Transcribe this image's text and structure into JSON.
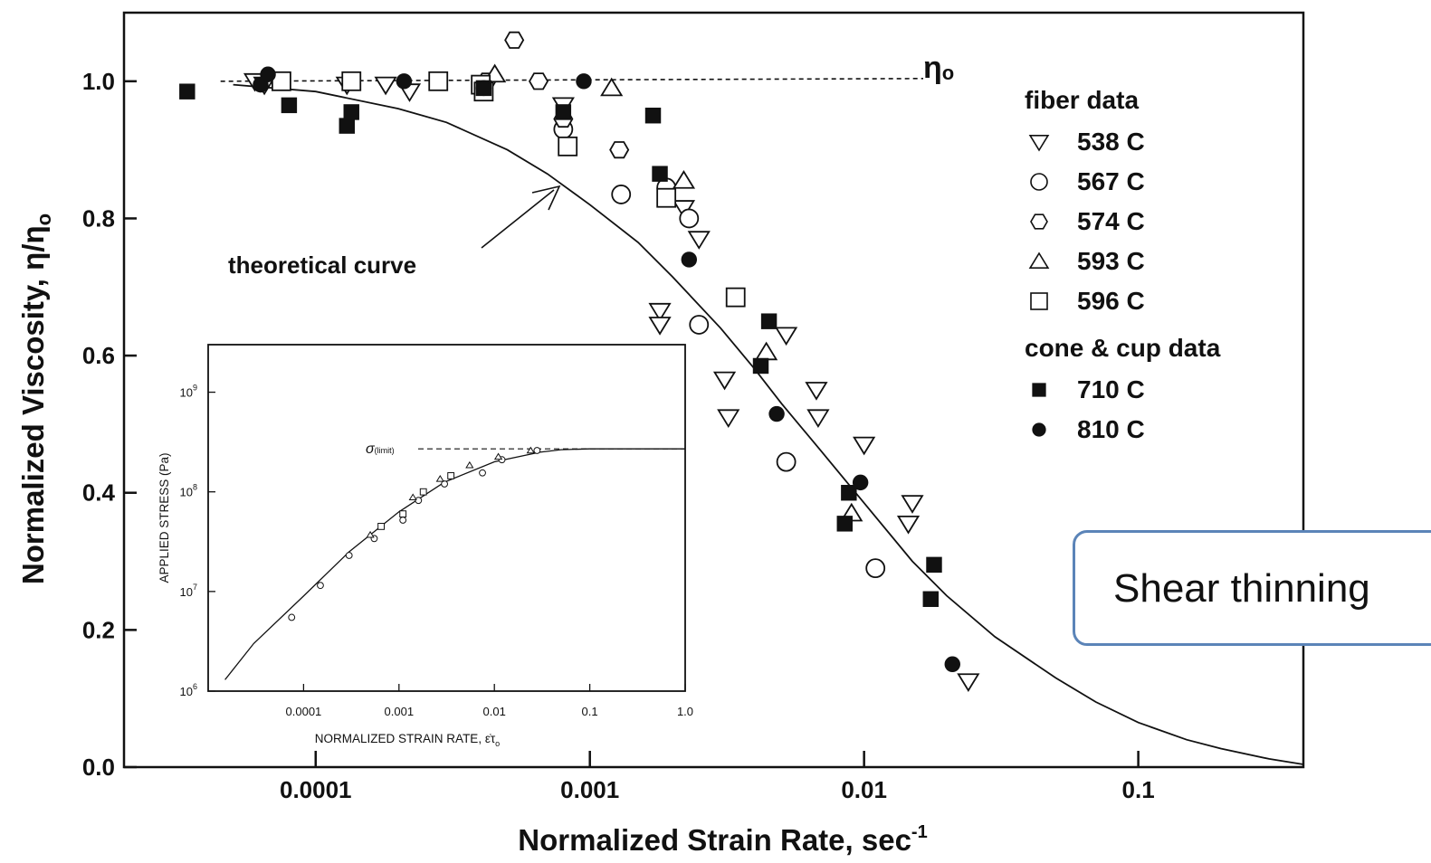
{
  "chart_data": [
    {
      "type": "scatter",
      "title": "",
      "xlabel": "Normalized Strain Rate, sec",
      "xlabel_sup": "-1",
      "ylabel": "Normalized Viscosity, η/η",
      "ylabel_sub": "o",
      "x_scale": "log",
      "xlim": [
        2e-05,
        0.4
      ],
      "ylim": [
        0,
        1.1
      ],
      "x_ticks": [
        0.0001,
        0.001,
        0.01,
        0.1
      ],
      "x_tick_labels": [
        "0.0001",
        "0.001",
        "0.01",
        "0.1"
      ],
      "y_ticks": [
        0.0,
        0.2,
        0.4,
        0.6,
        0.8,
        1.0
      ],
      "y_tick_labels": [
        "0.0",
        "0.2",
        "0.4",
        "0.6",
        "0.8",
        "1.0"
      ],
      "legend_placement": "right",
      "legend_groups": [
        {
          "title": "fiber data",
          "series": [
            0,
            1,
            2,
            3,
            4
          ]
        },
        {
          "title": "cone & cup data",
          "series": [
            5,
            6
          ]
        }
      ],
      "reference_line": {
        "label": "η",
        "label_sub": "o",
        "y": 1.0,
        "style": "dashed"
      },
      "annotation": {
        "text": "theoretical curve"
      },
      "theoretical_curve": {
        "x": [
          5e-05,
          0.0001,
          0.0002,
          0.0003,
          0.0005,
          0.0007,
          0.001,
          0.0015,
          0.002,
          0.003,
          0.004,
          0.005,
          0.007,
          0.01,
          0.015,
          0.02,
          0.03,
          0.05,
          0.07,
          0.1,
          0.15,
          0.2,
          0.3,
          0.4
        ],
        "y": [
          0.995,
          0.985,
          0.96,
          0.94,
          0.9,
          0.865,
          0.82,
          0.765,
          0.715,
          0.64,
          0.58,
          0.53,
          0.46,
          0.385,
          0.3,
          0.25,
          0.19,
          0.13,
          0.095,
          0.065,
          0.04,
          0.027,
          0.012,
          0.004
        ]
      },
      "series": [
        {
          "name": "538 C",
          "marker": "triangle-down",
          "filled": false,
          "x": [
            6e-05,
            6.5e-05,
            0.00013,
            0.00018,
            0.00022,
            0.0008,
            0.0022,
            0.0025,
            0.0018,
            0.0018,
            0.0031,
            0.0032,
            0.0052,
            0.0067,
            0.0068,
            0.01,
            0.015,
            0.0145,
            0.024
          ],
          "y": [
            1.0,
            0.995,
            0.995,
            0.995,
            0.985,
            0.965,
            0.815,
            0.77,
            0.665,
            0.645,
            0.565,
            0.51,
            0.63,
            0.55,
            0.51,
            0.47,
            0.385,
            0.355,
            0.125
          ]
        },
        {
          "name": "567 C",
          "marker": "circle",
          "filled": false,
          "x": [
            0.0008,
            0.0013,
            0.0019,
            0.0023,
            0.0025,
            0.0052,
            0.011
          ],
          "y": [
            0.93,
            0.835,
            0.845,
            0.8,
            0.645,
            0.445,
            0.29
          ]
        },
        {
          "name": "574 C",
          "marker": "hexagon",
          "filled": false,
          "x": [
            0.00042,
            0.00053,
            0.00065,
            0.0008,
            0.00128
          ],
          "y": [
            1.0,
            1.06,
            1.0,
            0.945,
            0.9
          ]
        },
        {
          "name": "593 C",
          "marker": "triangle-up",
          "filled": false,
          "x": [
            0.00045,
            0.0012,
            0.0022,
            0.0044,
            0.009
          ],
          "y": [
            1.01,
            0.99,
            0.855,
            0.605,
            0.37
          ]
        },
        {
          "name": "596 C",
          "marker": "square",
          "filled": false,
          "x": [
            7.5e-05,
            0.000135,
            0.00028,
            0.0004,
            0.00041,
            0.00083,
            0.0019,
            0.0034
          ],
          "y": [
            1.0,
            1.0,
            1.0,
            0.995,
            0.985,
            0.905,
            0.83,
            0.685
          ]
        },
        {
          "name": "710 C",
          "marker": "square",
          "filled": true,
          "x": [
            3.4e-05,
            8e-05,
            0.00013,
            0.000135,
            0.00041,
            0.0008,
            0.0017,
            0.0018,
            0.0042,
            0.0045,
            0.0085,
            0.0088,
            0.018,
            0.0175
          ],
          "y": [
            0.985,
            0.965,
            0.935,
            0.955,
            0.99,
            0.955,
            0.95,
            0.865,
            0.585,
            0.65,
            0.355,
            0.4,
            0.295,
            0.245
          ]
        },
        {
          "name": "810 C",
          "marker": "circle",
          "filled": true,
          "x": [
            6.3e-05,
            6.7e-05,
            0.00021,
            0.00041,
            0.00095,
            0.0023,
            0.0048,
            0.0097,
            0.021
          ],
          "y": [
            0.995,
            1.01,
            1.0,
            0.99,
            1.0,
            0.74,
            0.515,
            0.415,
            0.15
          ]
        }
      ]
    },
    {
      "type": "scatter",
      "title": "",
      "xlabel": "NORMALIZED STRAIN RATE, ε̇τ",
      "xlabel_sub": "o",
      "ylabel": "APPLIED STRESS (Pa)",
      "x_scale": "log",
      "y_scale": "log",
      "xlim": [
        1e-05,
        1.0
      ],
      "ylim": [
        1000000,
        3000000000
      ],
      "x_ticks": [
        0.0001,
        0.001,
        0.01,
        0.1,
        1.0
      ],
      "x_tick_labels": [
        "0.0001",
        "0.001",
        "0.01",
        "0.1",
        "1.0"
      ],
      "y_ticks": [
        1000000,
        10000000,
        100000000,
        1000000000
      ],
      "y_tick_labels": [
        {
          "base": "10",
          "exp": "6"
        },
        {
          "base": "10",
          "exp": "7"
        },
        {
          "base": "10",
          "exp": "8"
        },
        {
          "base": "10",
          "exp": "9"
        }
      ],
      "limit_line": {
        "label": "σ",
        "label_sub": "(limit)",
        "y": 270000000,
        "style": "dashed"
      },
      "theoretical_curve": {
        "x": [
          1.5e-05,
          3e-05,
          0.0001,
          0.0003,
          0.001,
          0.003,
          0.01,
          0.03,
          0.05,
          0.1,
          0.2,
          1.0
        ],
        "y": [
          1300000,
          3000000,
          9000000,
          25000000,
          63000000,
          125000000,
          200000000,
          250000000,
          265000000,
          270000000,
          270000000,
          270000000
        ]
      },
      "series": [
        {
          "name": "",
          "marker": "circle",
          "filled": false,
          "x": [
            7.5e-05,
            0.00015,
            0.0003,
            0.00055,
            0.0011,
            0.0016,
            0.003,
            0.0075,
            0.012,
            0.028
          ],
          "y": [
            5500000,
            11500000,
            23000000,
            34000000,
            52000000,
            82000000,
            120000000,
            155000000,
            210000000,
            260000000
          ]
        },
        {
          "name": "",
          "marker": "triangle-up",
          "filled": false,
          "x": [
            0.0005,
            0.0014,
            0.0027,
            0.0055,
            0.011,
            0.024
          ],
          "y": [
            37000000,
            88000000,
            135000000,
            185000000,
            225000000,
            260000000
          ]
        },
        {
          "name": "",
          "marker": "square",
          "filled": false,
          "x": [
            0.00065,
            0.0011,
            0.0018,
            0.0035
          ],
          "y": [
            45000000,
            60000000,
            100000000,
            145000000
          ]
        }
      ]
    }
  ],
  "callout": {
    "text": "Shear thinning"
  }
}
